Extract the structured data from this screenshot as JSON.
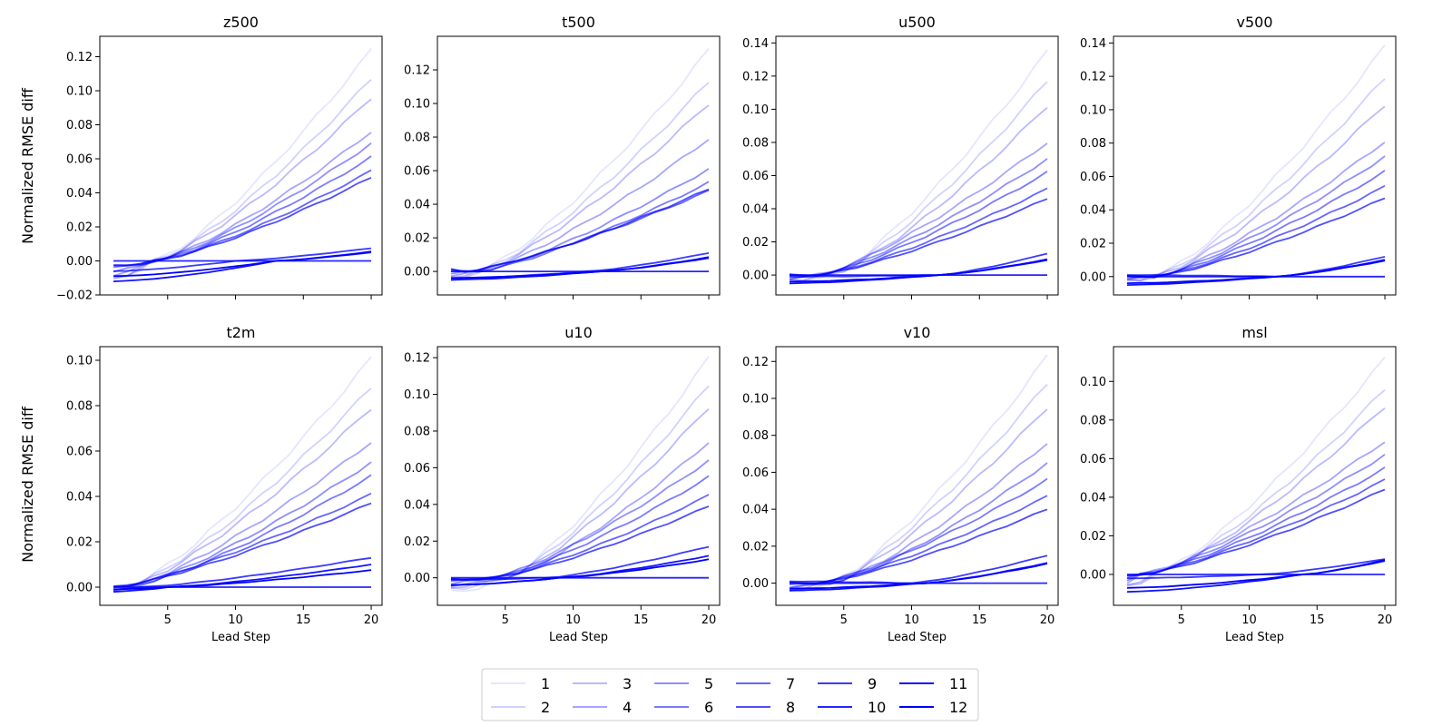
{
  "figure": {
    "ylabel": "Normalized RMSE diff",
    "xlabel": "Lead Step",
    "base_color": "#0000ff"
  },
  "chart_data": [
    {
      "type": "line",
      "title": "z500",
      "ylim": [
        -0.02,
        0.132
      ],
      "yticks": [
        -0.02,
        0.0,
        0.02,
        0.04,
        0.06,
        0.08,
        0.1,
        0.12
      ],
      "ytick_labels": [
        "−0.02",
        "0.00",
        "0.02",
        "0.04",
        "0.06",
        "0.08",
        "0.10",
        "0.12"
      ],
      "final": [
        0.124,
        0.107,
        0.096,
        0.076,
        0.069,
        0.061,
        0.053,
        0.049,
        0.0075,
        0.0,
        0.005,
        0.0055
      ],
      "trough": [
        -0.01,
        -0.01,
        -0.01,
        -0.008,
        -0.006,
        -0.004,
        -0.003,
        -0.003,
        -0.006,
        0.0,
        -0.012,
        -0.009
      ],
      "cross": [
        4,
        4,
        4,
        4,
        4,
        4,
        4,
        4,
        10,
        10,
        13,
        13
      ]
    },
    {
      "type": "line",
      "title": "t500",
      "ylim": [
        -0.014,
        0.14
      ],
      "yticks": [
        0.0,
        0.02,
        0.04,
        0.06,
        0.08,
        0.1,
        0.12
      ],
      "ytick_labels": [
        "0.00",
        "0.02",
        "0.04",
        "0.06",
        "0.08",
        "0.10",
        "0.12"
      ],
      "final": [
        0.132,
        0.113,
        0.1,
        0.079,
        0.061,
        0.053,
        0.048,
        0.049,
        0.011,
        0.0,
        0.008,
        0.0085
      ],
      "trough": [
        -0.005,
        -0.004,
        -0.003,
        -0.002,
        -0.001,
        0.0,
        0.001,
        0.001,
        -0.004,
        0.0,
        -0.005,
        -0.004
      ],
      "cross": [
        3,
        3,
        3,
        3,
        3,
        3,
        2,
        2,
        11,
        11,
        12,
        12
      ]
    },
    {
      "type": "line",
      "title": "u500",
      "ylim": [
        -0.012,
        0.144
      ],
      "yticks": [
        0.0,
        0.02,
        0.04,
        0.06,
        0.08,
        0.1,
        0.12,
        0.14
      ],
      "ytick_labels": [
        "0.00",
        "0.02",
        "0.04",
        "0.06",
        "0.08",
        "0.10",
        "0.12",
        "0.14"
      ],
      "final": [
        0.135,
        0.117,
        0.102,
        0.08,
        0.07,
        0.062,
        0.052,
        0.046,
        0.013,
        0.0,
        0.009,
        0.0095
      ],
      "trough": [
        -0.004,
        -0.003,
        -0.003,
        -0.002,
        -0.002,
        -0.001,
        0.0,
        0.0,
        -0.001,
        0.0,
        -0.005,
        -0.004
      ],
      "cross": [
        4,
        4,
        4,
        3,
        3,
        3,
        3,
        3,
        12,
        12,
        12,
        12
      ]
    },
    {
      "type": "line",
      "title": "v500",
      "ylim": [
        -0.011,
        0.144
      ],
      "yticks": [
        0.0,
        0.02,
        0.04,
        0.06,
        0.08,
        0.1,
        0.12,
        0.14
      ],
      "ytick_labels": [
        "0.00",
        "0.02",
        "0.04",
        "0.06",
        "0.08",
        "0.10",
        "0.12",
        "0.14"
      ],
      "final": [
        0.138,
        0.119,
        0.103,
        0.081,
        0.072,
        0.063,
        0.054,
        0.047,
        0.012,
        0.0,
        0.0095,
        0.01
      ],
      "trough": [
        -0.003,
        -0.002,
        -0.002,
        -0.001,
        -0.001,
        0.0,
        0.0,
        0.0,
        0.001,
        0.0,
        -0.005,
        -0.004
      ],
      "cross": [
        3,
        3,
        3,
        3,
        3,
        3,
        3,
        3,
        12,
        12,
        12,
        12
      ]
    },
    {
      "type": "line",
      "title": "t2m",
      "ylim": [
        -0.008,
        0.106
      ],
      "yticks": [
        0.0,
        0.02,
        0.04,
        0.06,
        0.08,
        0.1
      ],
      "ytick_labels": [
        "0.00",
        "0.02",
        "0.04",
        "0.06",
        "0.08",
        "0.10"
      ],
      "final": [
        0.101,
        0.088,
        0.079,
        0.064,
        0.055,
        0.049,
        0.041,
        0.037,
        0.013,
        0.0,
        0.01,
        0.0075
      ],
      "trough": [
        -0.002,
        -0.002,
        -0.001,
        -0.001,
        0.0,
        0.0,
        0.0,
        0.0,
        -0.001,
        0.0,
        -0.002,
        -0.001
      ],
      "cross": [
        2,
        2,
        2,
        2,
        2,
        2,
        1,
        1,
        3,
        3,
        5,
        5
      ]
    },
    {
      "type": "line",
      "title": "u10",
      "ylim": [
        -0.015,
        0.126
      ],
      "yticks": [
        0.0,
        0.02,
        0.04,
        0.06,
        0.08,
        0.1,
        0.12
      ],
      "ytick_labels": [
        "0.00",
        "0.02",
        "0.04",
        "0.06",
        "0.08",
        "0.10",
        "0.12"
      ],
      "final": [
        0.12,
        0.105,
        0.093,
        0.074,
        0.064,
        0.055,
        0.045,
        0.039,
        0.017,
        0.0,
        0.012,
        0.01
      ],
      "trough": [
        -0.008,
        -0.006,
        -0.005,
        -0.004,
        -0.003,
        -0.002,
        -0.001,
        -0.001,
        -0.001,
        0.0,
        -0.004,
        -0.004
      ],
      "cross": [
        5,
        5,
        5,
        5,
        4,
        4,
        4,
        4,
        8,
        8,
        9,
        9
      ]
    },
    {
      "type": "line",
      "title": "v10",
      "ylim": [
        -0.012,
        0.128
      ],
      "yticks": [
        0.0,
        0.02,
        0.04,
        0.06,
        0.08,
        0.1,
        0.12
      ],
      "ytick_labels": [
        "0.00",
        "0.02",
        "0.04",
        "0.06",
        "0.08",
        "0.10",
        "0.12"
      ],
      "final": [
        0.123,
        0.108,
        0.095,
        0.076,
        0.065,
        0.056,
        0.047,
        0.04,
        0.015,
        0.0,
        0.011,
        0.0105
      ],
      "trough": [
        -0.005,
        -0.004,
        -0.003,
        -0.002,
        -0.002,
        -0.001,
        0.0,
        0.0,
        0.001,
        0.0,
        -0.004,
        -0.003
      ],
      "cross": [
        4,
        4,
        4,
        4,
        4,
        3,
        3,
        3,
        10,
        10,
        11,
        11
      ]
    },
    {
      "type": "line",
      "title": "msl",
      "ylim": [
        -0.016,
        0.118
      ],
      "yticks": [
        0.0,
        0.02,
        0.04,
        0.06,
        0.08,
        0.1
      ],
      "ytick_labels": [
        "0.00",
        "0.02",
        "0.04",
        "0.06",
        "0.08",
        "0.10"
      ],
      "final": [
        0.112,
        0.096,
        0.087,
        0.069,
        0.062,
        0.055,
        0.049,
        0.044,
        0.008,
        0.0,
        0.007,
        0.0075
      ],
      "trough": [
        -0.007,
        -0.006,
        -0.005,
        -0.004,
        -0.003,
        -0.002,
        -0.001,
        -0.001,
        -0.002,
        0.0,
        -0.009,
        -0.007
      ],
      "cross": [
        3,
        3,
        3,
        2,
        2,
        2,
        2,
        2,
        11,
        11,
        14,
        14
      ]
    }
  ],
  "x_range": [
    0.0,
    20.8
  ],
  "xticks": [
    5,
    10,
    15,
    20
  ],
  "steps": 20,
  "legend": {
    "entries": [
      "1",
      "2",
      "3",
      "4",
      "5",
      "6",
      "7",
      "8",
      "9",
      "10",
      "11",
      "12"
    ],
    "alphas": [
      0.1,
      0.18,
      0.27,
      0.35,
      0.44,
      0.52,
      0.6,
      0.69,
      0.77,
      0.85,
      0.93,
      1.0
    ]
  }
}
